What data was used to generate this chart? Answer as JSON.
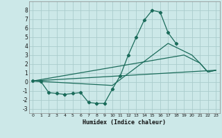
{
  "xlabel": "Humidex (Indice chaleur)",
  "bg_color": "#cce8e8",
  "grid_color": "#aacccc",
  "line_color": "#1a6b5a",
  "xlim": [
    -0.5,
    23.5
  ],
  "ylim": [
    -3.5,
    9.0
  ],
  "xticks": [
    0,
    1,
    2,
    3,
    4,
    5,
    6,
    7,
    8,
    9,
    10,
    11,
    12,
    13,
    14,
    15,
    16,
    17,
    18,
    19,
    20,
    21,
    22,
    23
  ],
  "yticks": [
    -3,
    -2,
    -1,
    0,
    1,
    2,
    3,
    4,
    5,
    6,
    7,
    8
  ],
  "line1_x": [
    0,
    1,
    2,
    3,
    4,
    5,
    6,
    7,
    8,
    9,
    10,
    11,
    12,
    13,
    14,
    15,
    16,
    17,
    18,
    19,
    20,
    21,
    22,
    23
  ],
  "line1_y": [
    0.1,
    0.05,
    -1.2,
    -1.3,
    -1.4,
    -1.3,
    -1.2,
    -2.3,
    -2.4,
    -2.4,
    -0.8,
    0.7,
    3.0,
    5.0,
    6.9,
    8.0,
    7.8,
    5.5,
    4.3,
    null,
    null,
    null,
    null,
    null
  ],
  "line2_x": [
    0,
    23
  ],
  "line2_y": [
    0.1,
    1.3
  ],
  "line3_x": [
    0,
    19,
    21,
    22,
    23
  ],
  "line3_y": [
    0.1,
    3.0,
    2.1,
    1.1,
    1.3
  ],
  "line4_x": [
    0,
    10,
    17,
    20,
    21,
    22,
    23
  ],
  "line4_y": [
    0.1,
    -0.4,
    4.3,
    3.0,
    2.1,
    1.1,
    1.3
  ]
}
